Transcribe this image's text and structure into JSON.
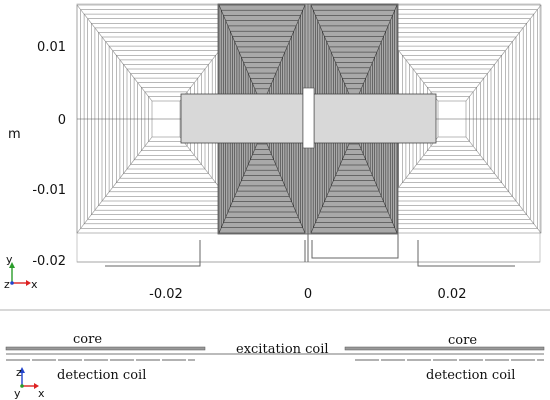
{
  "top_view": {
    "unit_label": "m",
    "y_ticks": [
      "0.01",
      "0",
      "-0.01",
      "-0.02"
    ],
    "x_ticks": [
      "-0.02",
      "0",
      "0.02"
    ],
    "triad": {
      "up": "y",
      "out": "z",
      "right": "x"
    }
  },
  "side_view": {
    "labels": {
      "core_left": "core",
      "core_right": "core",
      "excitation": "excitation coil",
      "detection_left": "detection coil",
      "detection_right": "detection coil"
    },
    "triad": {
      "up": "z",
      "out": "y",
      "right": "x"
    }
  }
}
